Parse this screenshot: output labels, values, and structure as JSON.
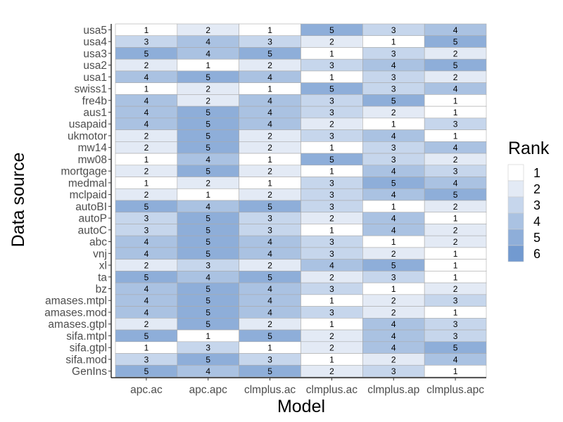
{
  "chart_data": {
    "type": "heatmap",
    "title": "",
    "xlabel": "Model",
    "ylabel": "Data source",
    "x_categories": [
      "apc.ac",
      "apc.apc",
      "clmplus.ac",
      "clmplus.ac",
      "clmplus.ap",
      "clmplus.apc"
    ],
    "y_categories": [
      "usa5",
      "usa4",
      "usa3",
      "usa2",
      "usa1",
      "swiss1",
      "fre4b",
      "aus1",
      "usapaid",
      "ukmotor",
      "mw14",
      "mw08",
      "mortgage",
      "medmal",
      "mclpaid",
      "autoBI",
      "autoP",
      "autoC",
      "abc",
      "vnj",
      "xl",
      "ta",
      "bz",
      "amases.mtpl",
      "amases.mod",
      "amases.gtpl",
      "sifa.mtpl",
      "sifa.gtpl",
      "sifa.mod",
      "GenIns"
    ],
    "values": [
      [
        1,
        2,
        1,
        5,
        3,
        4
      ],
      [
        3,
        4,
        3,
        2,
        1,
        5
      ],
      [
        5,
        4,
        5,
        1,
        3,
        2
      ],
      [
        2,
        1,
        2,
        3,
        4,
        5
      ],
      [
        4,
        5,
        4,
        1,
        3,
        2
      ],
      [
        1,
        2,
        1,
        5,
        3,
        4
      ],
      [
        4,
        2,
        4,
        3,
        5,
        1
      ],
      [
        4,
        5,
        4,
        3,
        2,
        1
      ],
      [
        4,
        5,
        4,
        2,
        1,
        3
      ],
      [
        2,
        5,
        2,
        3,
        4,
        1
      ],
      [
        2,
        5,
        2,
        1,
        3,
        4
      ],
      [
        1,
        4,
        1,
        5,
        3,
        2
      ],
      [
        2,
        5,
        2,
        1,
        4,
        3
      ],
      [
        1,
        2,
        1,
        3,
        5,
        4
      ],
      [
        2,
        1,
        2,
        3,
        4,
        5
      ],
      [
        5,
        4,
        5,
        3,
        1,
        2
      ],
      [
        3,
        5,
        3,
        2,
        4,
        1
      ],
      [
        3,
        5,
        3,
        1,
        4,
        2
      ],
      [
        4,
        5,
        4,
        3,
        1,
        2
      ],
      [
        4,
        5,
        4,
        3,
        2,
        1
      ],
      [
        2,
        3,
        2,
        4,
        5,
        1
      ],
      [
        5,
        4,
        5,
        2,
        3,
        1
      ],
      [
        4,
        5,
        4,
        3,
        1,
        2
      ],
      [
        4,
        5,
        4,
        1,
        2,
        3
      ],
      [
        4,
        5,
        4,
        3,
        2,
        1
      ],
      [
        2,
        5,
        2,
        1,
        4,
        3
      ],
      [
        5,
        1,
        5,
        2,
        4,
        3
      ],
      [
        1,
        3,
        1,
        2,
        4,
        5
      ],
      [
        3,
        5,
        3,
        1,
        2,
        4
      ],
      [
        5,
        4,
        5,
        2,
        3,
        1
      ]
    ],
    "legend": {
      "title": "Rank",
      "placement": "right",
      "entries": [
        "1",
        "2",
        "3",
        "4",
        "5",
        "6"
      ],
      "colors": [
        "#ffffff",
        "#e3eaf5",
        "#c6d6ec",
        "#aac2e2",
        "#8eaed9",
        "#729ad0"
      ]
    },
    "grid": false
  }
}
